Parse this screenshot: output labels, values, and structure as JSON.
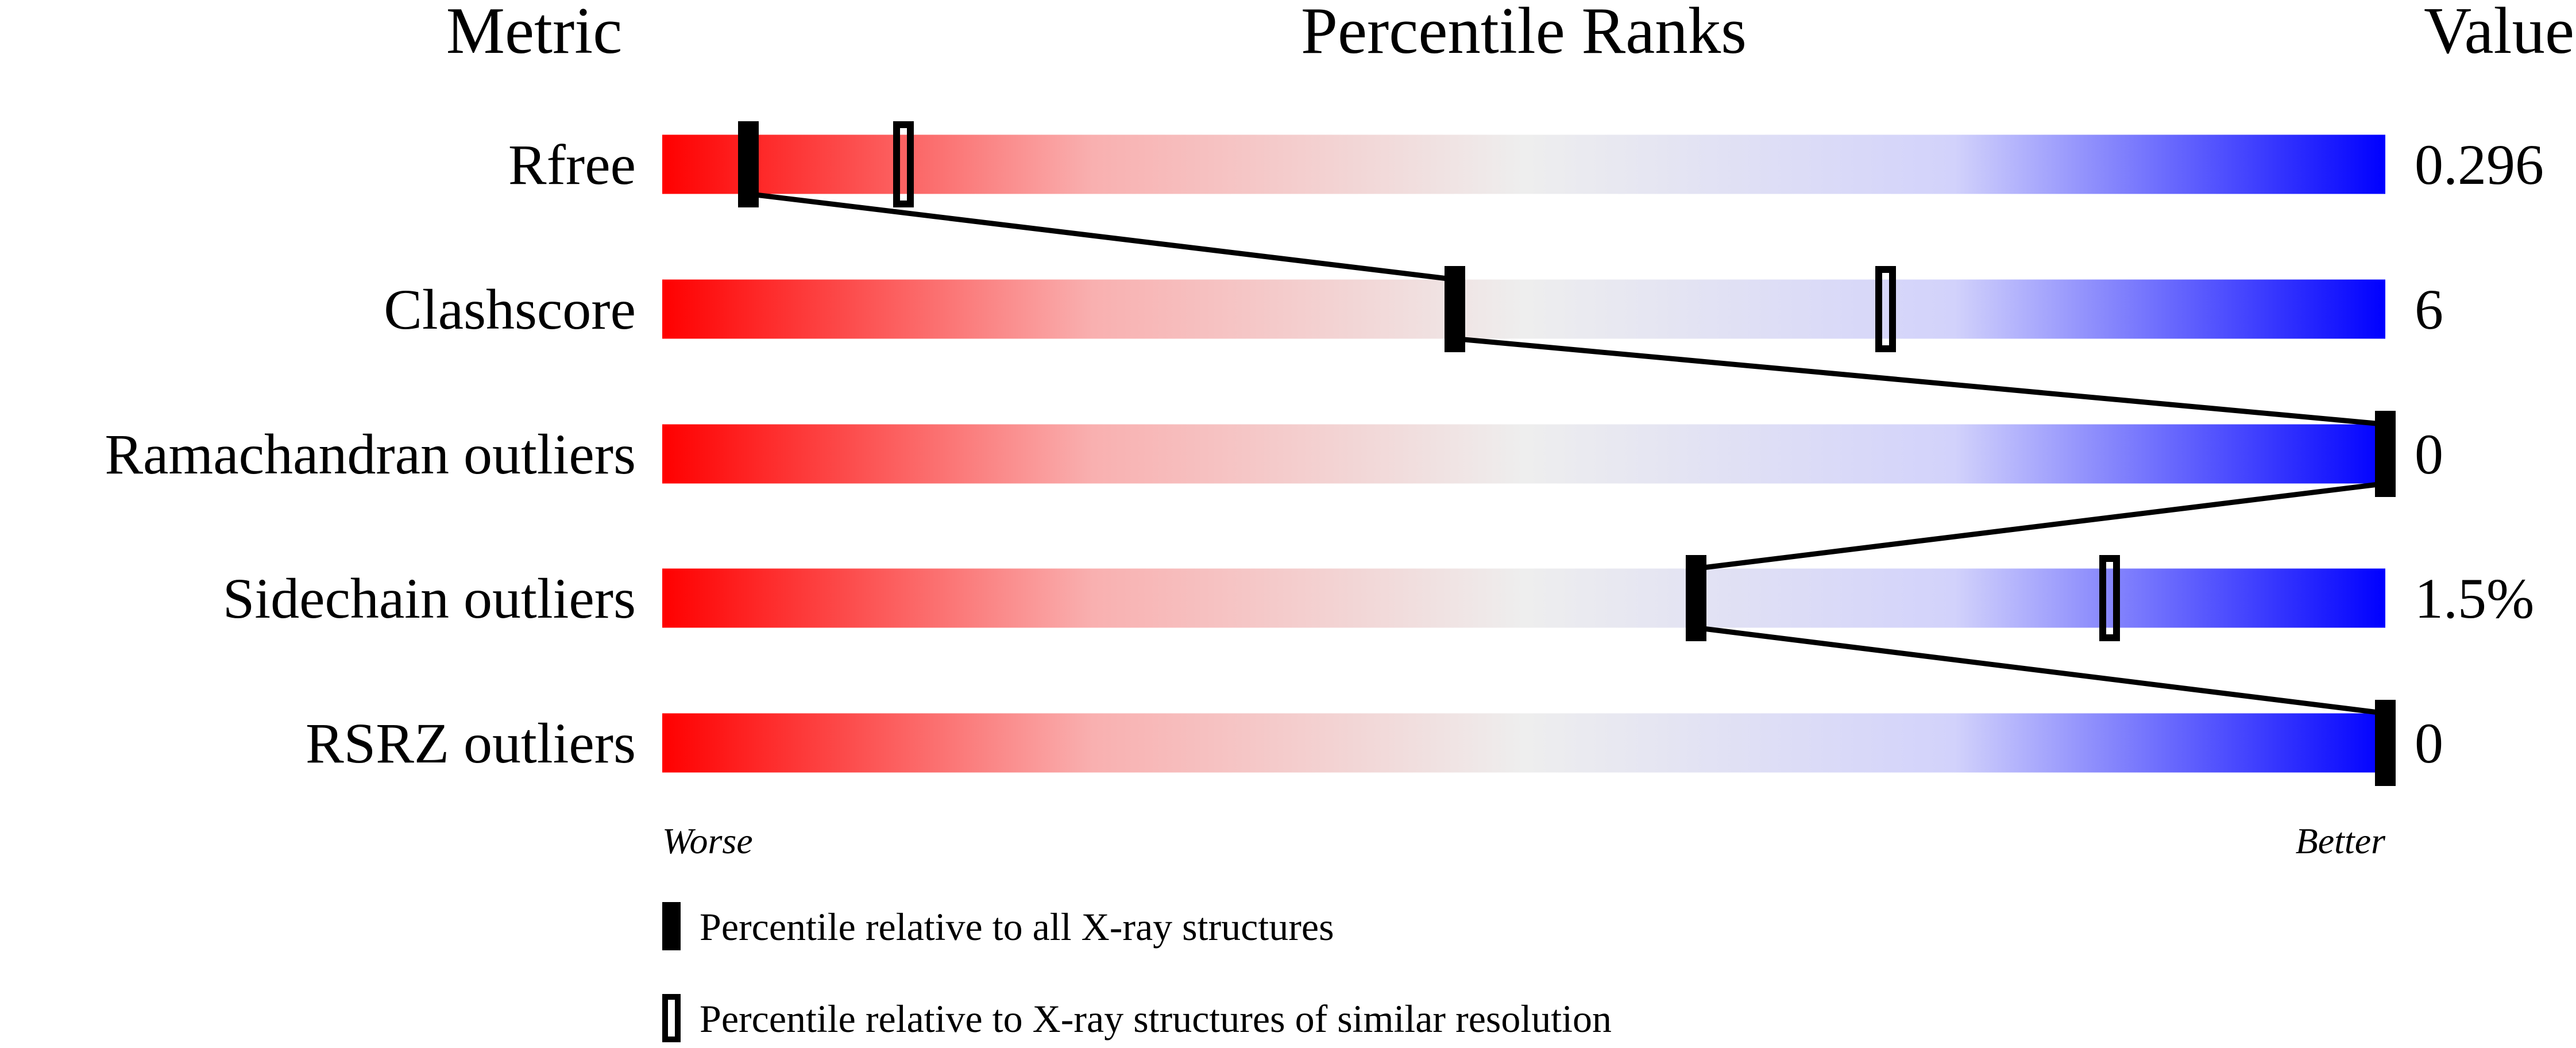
{
  "chart_data": {
    "type": "bar",
    "headers": {
      "metric": "Metric",
      "ranks": "Percentile Ranks",
      "value": "Value"
    },
    "xlim": [
      0,
      100
    ],
    "axis_labels": {
      "left": "Worse",
      "right": "Better"
    },
    "colors": {
      "worse": "#ff0000",
      "middle": "#eeeeee",
      "better": "#0000ff",
      "marker": "#000000"
    },
    "rows": [
      {
        "metric": "Rfree",
        "value": "0.296",
        "percentile_all": 5,
        "percentile_similar": 14
      },
      {
        "metric": "Clashscore",
        "value": "6",
        "percentile_all": 46,
        "percentile_similar": 71
      },
      {
        "metric": "Ramachandran outliers",
        "value": "0",
        "percentile_all": 100,
        "percentile_similar": 100
      },
      {
        "metric": "Sidechain outliers",
        "value": "1.5%",
        "percentile_all": 60,
        "percentile_similar": 84
      },
      {
        "metric": "RSRZ outliers",
        "value": "0",
        "percentile_all": 100,
        "percentile_similar": 100
      }
    ],
    "legend": [
      {
        "marker": "filled",
        "label": "Percentile relative to all X-ray structures"
      },
      {
        "marker": "open",
        "label": "Percentile relative to X-ray structures of similar resolution"
      }
    ]
  }
}
